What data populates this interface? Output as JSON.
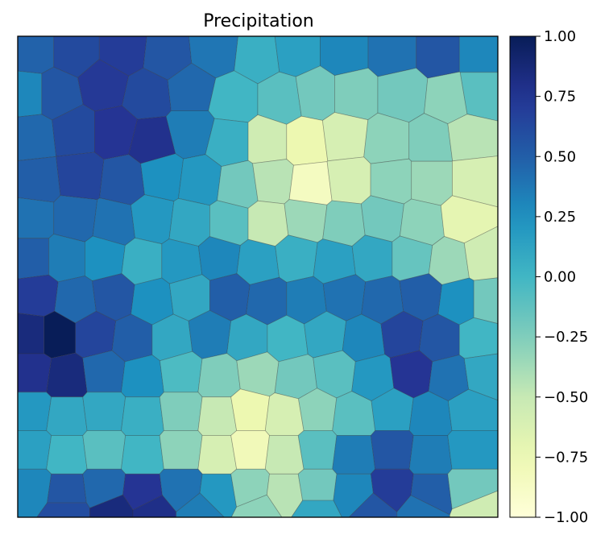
{
  "chart_data": {
    "type": "heatmap",
    "subtype": "voronoi",
    "title": "Precipitation",
    "xlabel": "",
    "ylabel": "",
    "grid": false,
    "axis_ticks_shown": false,
    "colormap": "YlGnBu",
    "colorbar": {
      "vmin": -1.0,
      "vmax": 1.0,
      "tick_values": [
        1.0,
        0.75,
        0.5,
        0.25,
        0.0,
        -0.25,
        -0.5,
        -0.75,
        -1.0
      ],
      "tick_labels": [
        "1.00",
        "0.75",
        "0.50",
        "0.25",
        "0.00",
        "−0.25",
        "−0.50",
        "−0.75",
        "−1.00"
      ]
    },
    "cells": [
      [
        0.03,
        0.97,
        0.48
      ],
      [
        0.12,
        0.97,
        0.62
      ],
      [
        0.22,
        0.97,
        0.7
      ],
      [
        0.31,
        0.96,
        0.55
      ],
      [
        0.41,
        0.97,
        0.38
      ],
      [
        0.5,
        0.96,
        0.05
      ],
      [
        0.58,
        0.97,
        0.15
      ],
      [
        0.68,
        0.97,
        0.3
      ],
      [
        0.78,
        0.97,
        0.4
      ],
      [
        0.88,
        0.97,
        0.55
      ],
      [
        0.96,
        0.97,
        0.3
      ],
      [
        0.02,
        0.88,
        0.3
      ],
      [
        0.08,
        0.88,
        0.55
      ],
      [
        0.18,
        0.9,
        0.72
      ],
      [
        0.27,
        0.88,
        0.62
      ],
      [
        0.36,
        0.89,
        0.45
      ],
      [
        0.45,
        0.87,
        0.0
      ],
      [
        0.55,
        0.87,
        -0.1
      ],
      [
        0.62,
        0.88,
        -0.2
      ],
      [
        0.7,
        0.88,
        -0.25
      ],
      [
        0.8,
        0.88,
        -0.2
      ],
      [
        0.9,
        0.87,
        -0.3
      ],
      [
        0.96,
        0.88,
        -0.1
      ],
      [
        0.03,
        0.79,
        0.45
      ],
      [
        0.12,
        0.8,
        0.62
      ],
      [
        0.2,
        0.8,
        0.75
      ],
      [
        0.28,
        0.78,
        0.78
      ],
      [
        0.36,
        0.8,
        0.35
      ],
      [
        0.44,
        0.78,
        0.05
      ],
      [
        0.52,
        0.78,
        -0.55
      ],
      [
        0.6,
        0.78,
        -0.75
      ],
      [
        0.68,
        0.79,
        -0.6
      ],
      [
        0.77,
        0.78,
        -0.3
      ],
      [
        0.86,
        0.78,
        -0.25
      ],
      [
        0.94,
        0.79,
        -0.45
      ],
      [
        0.04,
        0.7,
        0.5
      ],
      [
        0.13,
        0.71,
        0.65
      ],
      [
        0.22,
        0.7,
        0.55
      ],
      [
        0.3,
        0.71,
        0.25
      ],
      [
        0.38,
        0.7,
        0.2
      ],
      [
        0.46,
        0.69,
        -0.2
      ],
      [
        0.53,
        0.7,
        -0.45
      ],
      [
        0.61,
        0.69,
        -0.85
      ],
      [
        0.69,
        0.7,
        -0.6
      ],
      [
        0.78,
        0.7,
        -0.3
      ],
      [
        0.86,
        0.7,
        -0.35
      ],
      [
        0.95,
        0.7,
        -0.6
      ],
      [
        0.03,
        0.62,
        0.4
      ],
      [
        0.12,
        0.62,
        0.45
      ],
      [
        0.2,
        0.61,
        0.4
      ],
      [
        0.28,
        0.62,
        0.2
      ],
      [
        0.36,
        0.61,
        0.1
      ],
      [
        0.44,
        0.61,
        -0.1
      ],
      [
        0.52,
        0.61,
        -0.5
      ],
      [
        0.6,
        0.62,
        -0.35
      ],
      [
        0.68,
        0.61,
        -0.25
      ],
      [
        0.76,
        0.62,
        -0.2
      ],
      [
        0.84,
        0.61,
        -0.3
      ],
      [
        0.93,
        0.62,
        -0.7
      ],
      [
        0.03,
        0.54,
        0.5
      ],
      [
        0.1,
        0.54,
        0.35
      ],
      [
        0.18,
        0.54,
        0.25
      ],
      [
        0.26,
        0.53,
        0.05
      ],
      [
        0.34,
        0.53,
        0.2
      ],
      [
        0.42,
        0.54,
        0.3
      ],
      [
        0.5,
        0.53,
        0.15
      ],
      [
        0.58,
        0.54,
        0.05
      ],
      [
        0.66,
        0.53,
        0.15
      ],
      [
        0.74,
        0.54,
        0.1
      ],
      [
        0.82,
        0.54,
        -0.15
      ],
      [
        0.9,
        0.53,
        -0.35
      ],
      [
        0.97,
        0.54,
        -0.55
      ],
      [
        0.04,
        0.46,
        0.7
      ],
      [
        0.12,
        0.45,
        0.45
      ],
      [
        0.2,
        0.46,
        0.55
      ],
      [
        0.28,
        0.45,
        0.25
      ],
      [
        0.36,
        0.46,
        0.1
      ],
      [
        0.44,
        0.46,
        0.5
      ],
      [
        0.52,
        0.45,
        0.45
      ],
      [
        0.6,
        0.45,
        0.35
      ],
      [
        0.68,
        0.46,
        0.4
      ],
      [
        0.76,
        0.45,
        0.45
      ],
      [
        0.84,
        0.46,
        0.5
      ],
      [
        0.92,
        0.45,
        0.25
      ],
      [
        0.98,
        0.45,
        -0.2
      ],
      [
        0.03,
        0.38,
        0.85
      ],
      [
        0.08,
        0.38,
        1.0
      ],
      [
        0.16,
        0.38,
        0.65
      ],
      [
        0.24,
        0.37,
        0.5
      ],
      [
        0.32,
        0.37,
        0.1
      ],
      [
        0.4,
        0.38,
        0.35
      ],
      [
        0.48,
        0.37,
        0.1
      ],
      [
        0.56,
        0.37,
        0.0
      ],
      [
        0.64,
        0.38,
        0.1
      ],
      [
        0.72,
        0.37,
        0.3
      ],
      [
        0.8,
        0.38,
        0.65
      ],
      [
        0.88,
        0.37,
        0.55
      ],
      [
        0.96,
        0.37,
        0.0
      ],
      [
        0.03,
        0.3,
        0.78
      ],
      [
        0.1,
        0.29,
        0.85
      ],
      [
        0.18,
        0.3,
        0.45
      ],
      [
        0.26,
        0.29,
        0.25
      ],
      [
        0.34,
        0.3,
        -0.05
      ],
      [
        0.42,
        0.29,
        -0.25
      ],
      [
        0.5,
        0.3,
        -0.35
      ],
      [
        0.58,
        0.29,
        -0.2
      ],
      [
        0.66,
        0.3,
        -0.1
      ],
      [
        0.74,
        0.29,
        0.2
      ],
      [
        0.82,
        0.3,
        0.75
      ],
      [
        0.9,
        0.29,
        0.4
      ],
      [
        0.97,
        0.3,
        0.1
      ],
      [
        0.03,
        0.22,
        0.2
      ],
      [
        0.1,
        0.21,
        0.1
      ],
      [
        0.18,
        0.22,
        0.1
      ],
      [
        0.26,
        0.21,
        0.05
      ],
      [
        0.34,
        0.22,
        -0.25
      ],
      [
        0.42,
        0.21,
        -0.5
      ],
      [
        0.48,
        0.22,
        -0.75
      ],
      [
        0.56,
        0.21,
        -0.6
      ],
      [
        0.62,
        0.22,
        -0.3
      ],
      [
        0.7,
        0.21,
        -0.1
      ],
      [
        0.78,
        0.22,
        0.15
      ],
      [
        0.86,
        0.21,
        0.3
      ],
      [
        0.94,
        0.22,
        0.15
      ],
      [
        0.03,
        0.14,
        0.15
      ],
      [
        0.1,
        0.13,
        0.0
      ],
      [
        0.18,
        0.14,
        -0.1
      ],
      [
        0.26,
        0.13,
        0.0
      ],
      [
        0.34,
        0.14,
        -0.3
      ],
      [
        0.42,
        0.13,
        -0.6
      ],
      [
        0.48,
        0.14,
        -0.8
      ],
      [
        0.56,
        0.13,
        -0.5
      ],
      [
        0.62,
        0.14,
        -0.1
      ],
      [
        0.7,
        0.13,
        0.35
      ],
      [
        0.78,
        0.14,
        0.55
      ],
      [
        0.86,
        0.13,
        0.35
      ],
      [
        0.94,
        0.14,
        0.2
      ],
      [
        0.03,
        0.06,
        0.3
      ],
      [
        0.1,
        0.05,
        0.55
      ],
      [
        0.18,
        0.06,
        0.45
      ],
      [
        0.26,
        0.05,
        0.75
      ],
      [
        0.34,
        0.06,
        0.4
      ],
      [
        0.42,
        0.05,
        0.2
      ],
      [
        0.48,
        0.06,
        -0.3
      ],
      [
        0.56,
        0.05,
        -0.45
      ],
      [
        0.62,
        0.06,
        -0.2
      ],
      [
        0.7,
        0.05,
        0.3
      ],
      [
        0.78,
        0.06,
        0.7
      ],
      [
        0.86,
        0.05,
        0.5
      ],
      [
        0.94,
        0.06,
        -0.2
      ],
      [
        0.1,
        0.01,
        0.6
      ],
      [
        0.2,
        0.01,
        0.85
      ],
      [
        0.28,
        0.01,
        0.8
      ],
      [
        0.38,
        0.01,
        0.35
      ],
      [
        0.5,
        0.01,
        -0.3
      ],
      [
        0.62,
        0.01,
        0.1
      ],
      [
        0.74,
        0.01,
        0.55
      ],
      [
        0.84,
        0.01,
        0.4
      ],
      [
        0.96,
        0.01,
        -0.55
      ]
    ]
  }
}
